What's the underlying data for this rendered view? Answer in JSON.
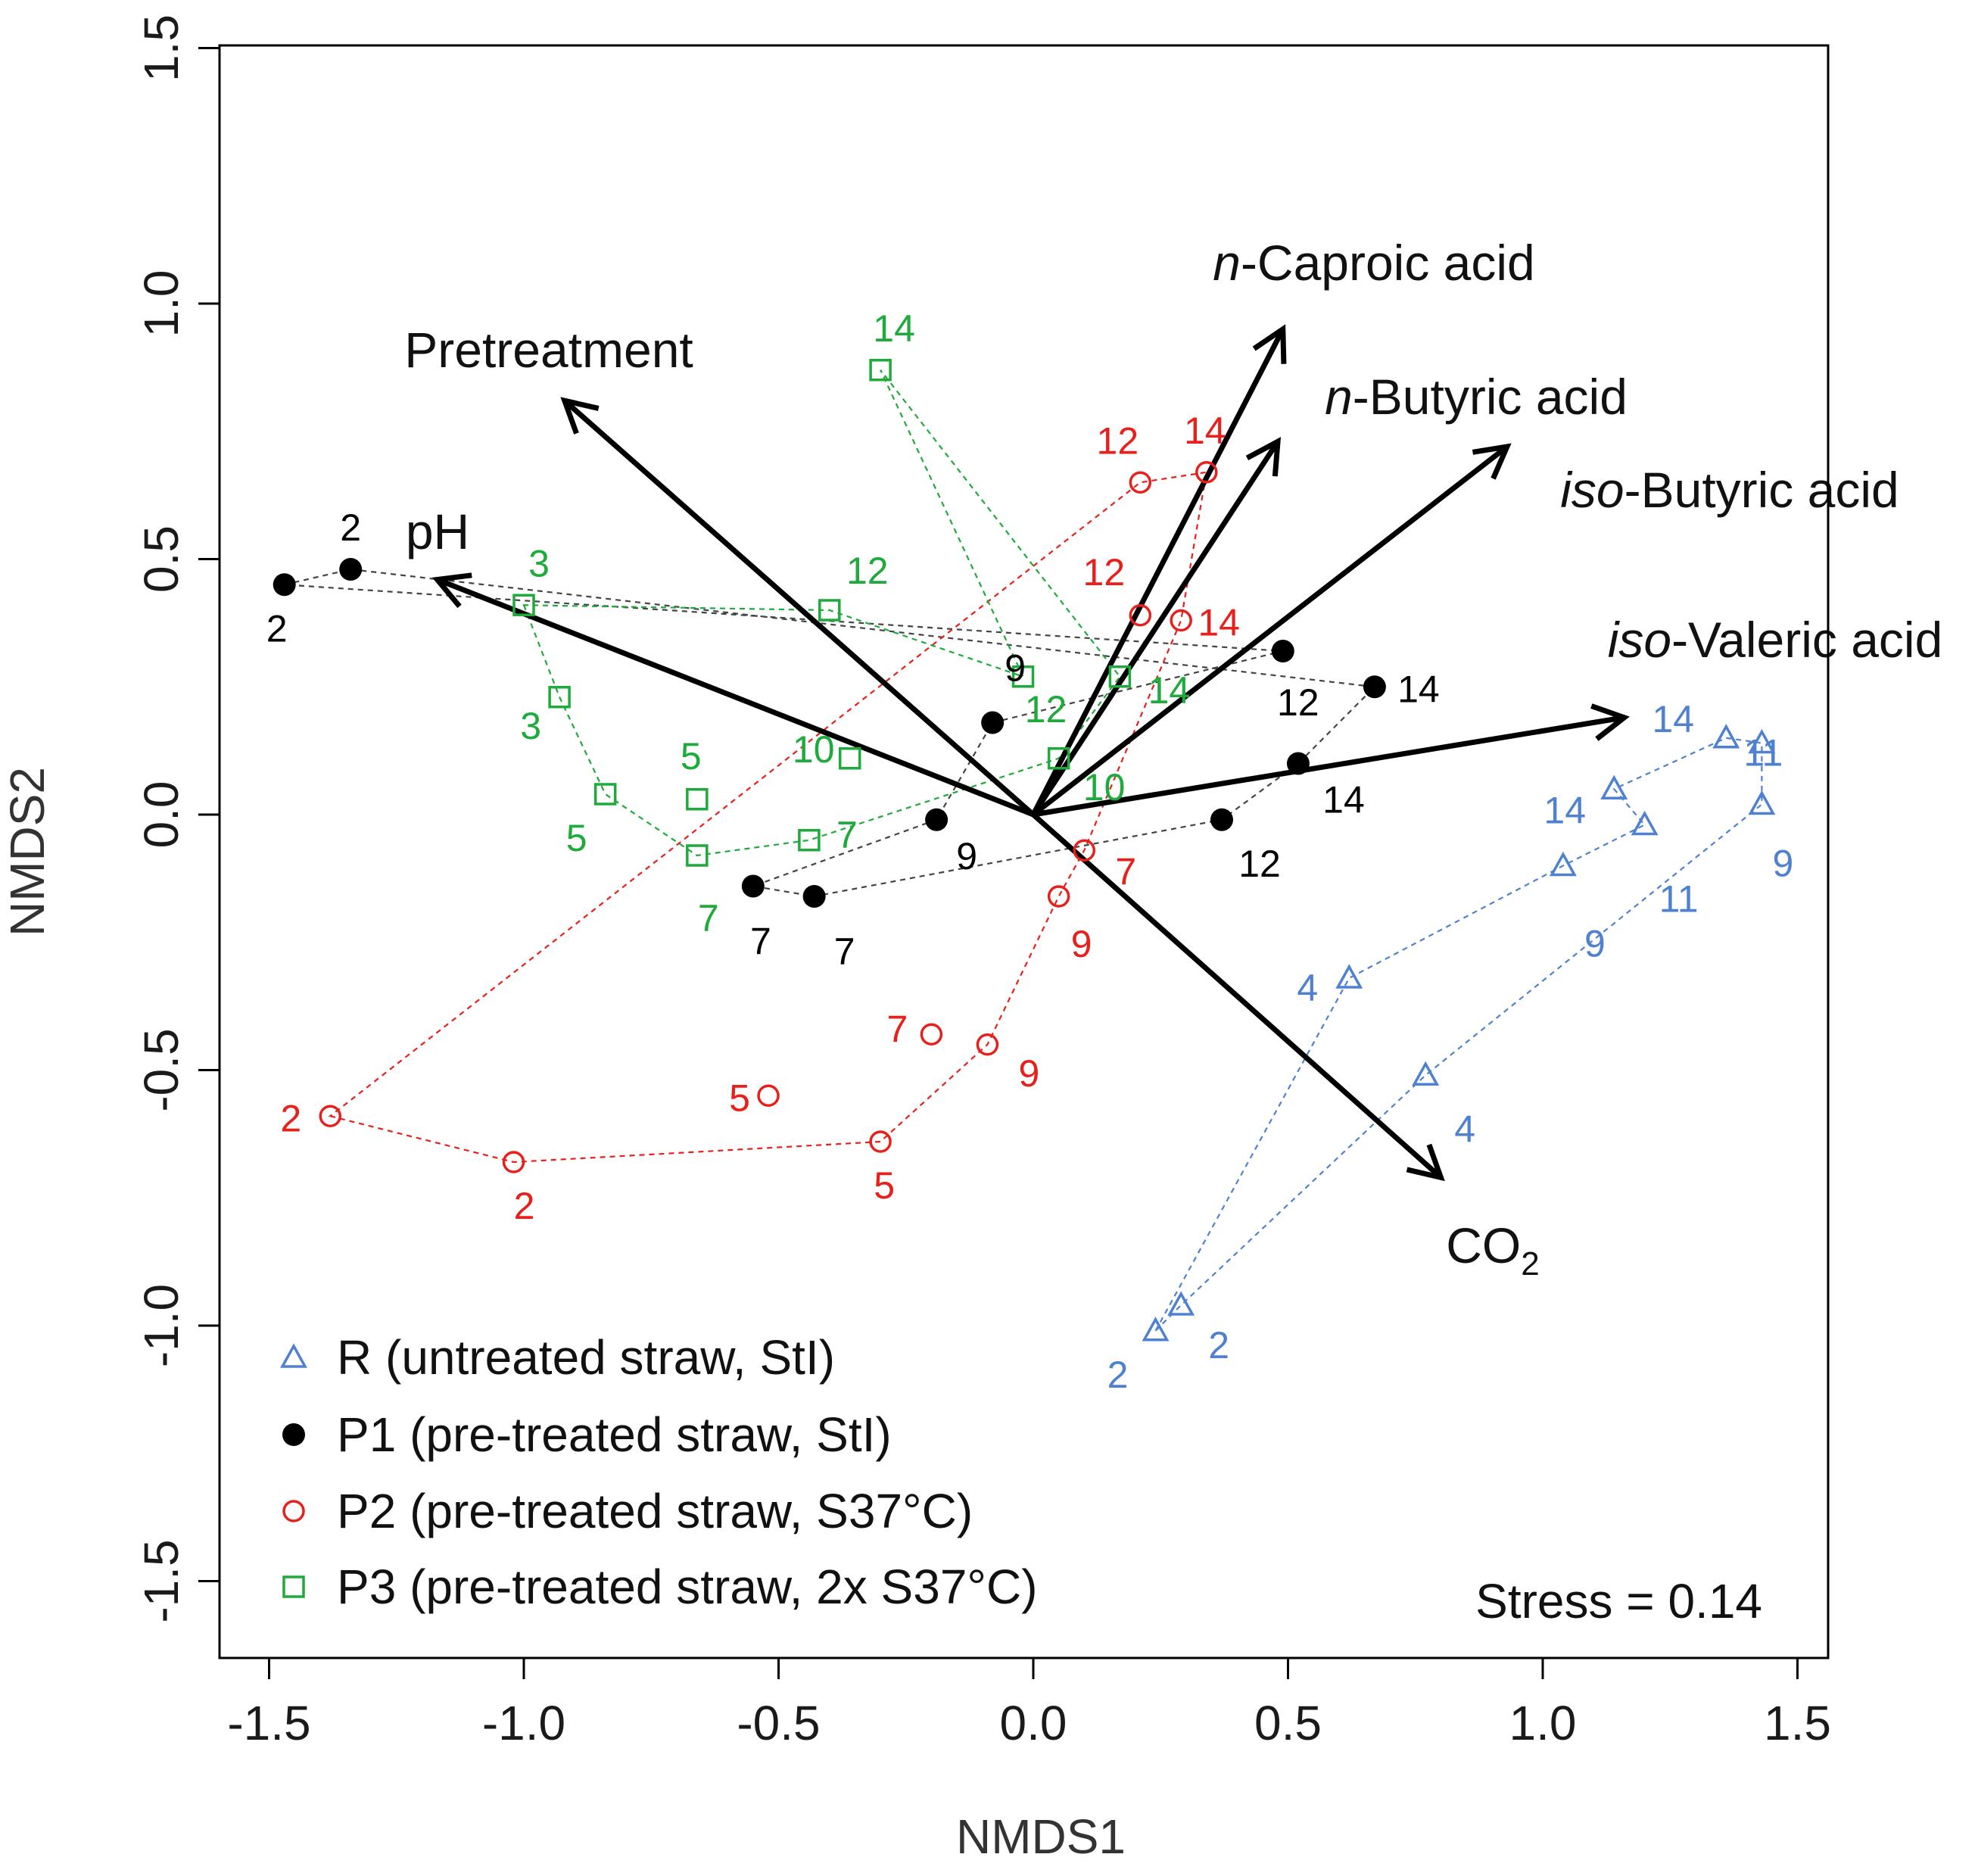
{
  "chart_data": {
    "type": "scatter",
    "title": "",
    "xlabel": "NMDS1",
    "ylabel": "NMDS2",
    "xlim": [
      -1.6,
      1.6
    ],
    "ylim": [
      -1.65,
      1.5
    ],
    "xticks": [
      -1.5,
      -1.0,
      -0.5,
      0.0,
      0.5,
      1.0,
      1.5
    ],
    "yticks": [
      -1.5,
      -1.0,
      -0.5,
      0.0,
      0.5,
      1.0,
      1.5
    ],
    "xtick_labels": [
      "-1.5",
      "-1.0",
      "-0.5",
      "0.0",
      "0.5",
      "1.0",
      "1.5"
    ],
    "ytick_labels": [
      "-1.5",
      "-1.0",
      "-0.5",
      "0.0",
      "0.5",
      "1.0",
      "1.5"
    ],
    "grid": false,
    "stress": "Stress = 0.14",
    "series": [
      {
        "name": "R (untreated straw, StI)",
        "marker": "triangle",
        "color": "#4f81d0",
        "points": [
          {
            "x": 0.24,
            "y": -1.01,
            "label": "2"
          },
          {
            "x": 0.29,
            "y": -0.96,
            "label": "2"
          },
          {
            "x": 0.62,
            "y": -0.32,
            "label": "4"
          },
          {
            "x": 0.77,
            "y": -0.51,
            "label": "4"
          },
          {
            "x": 1.04,
            "y": -0.1,
            "label": "9"
          },
          {
            "x": 1.43,
            "y": 0.02,
            "label": "9"
          },
          {
            "x": 1.2,
            "y": -0.02,
            "label": "11"
          },
          {
            "x": 1.43,
            "y": 0.14,
            "label": "11"
          },
          {
            "x": 1.14,
            "y": 0.05,
            "label": "14"
          },
          {
            "x": 1.36,
            "y": 0.15,
            "label": "14"
          }
        ]
      },
      {
        "name": "P1 (pre-treated straw, StI)",
        "marker": "filled-circle",
        "color": "#000000",
        "points": [
          {
            "x": -1.47,
            "y": 0.45,
            "label": "2"
          },
          {
            "x": -1.34,
            "y": 0.48,
            "label": "2"
          },
          {
            "x": -0.55,
            "y": -0.14,
            "label": "7"
          },
          {
            "x": -0.43,
            "y": -0.16,
            "label": "7"
          },
          {
            "x": -0.19,
            "y": -0.01,
            "label": "9"
          },
          {
            "x": -0.08,
            "y": 0.18,
            "label": "9"
          },
          {
            "x": 0.37,
            "y": -0.01,
            "label": "12"
          },
          {
            "x": 0.49,
            "y": 0.32,
            "label": "12"
          },
          {
            "x": 0.52,
            "y": 0.1,
            "label": "14"
          },
          {
            "x": 0.67,
            "y": 0.25,
            "label": "14"
          }
        ]
      },
      {
        "name": "P2 (pre-treated straw, S37°C)",
        "marker": "open-circle",
        "color": "#e8201b",
        "points": [
          {
            "x": -1.38,
            "y": -0.59,
            "label": "2"
          },
          {
            "x": -1.02,
            "y": -0.68,
            "label": "2"
          },
          {
            "x": -0.52,
            "y": -0.55,
            "label": "5"
          },
          {
            "x": -0.3,
            "y": -0.64,
            "label": "5"
          },
          {
            "x": -0.2,
            "y": -0.43,
            "label": "7"
          },
          {
            "x": 0.1,
            "y": -0.07,
            "label": "7"
          },
          {
            "x": -0.09,
            "y": -0.45,
            "label": "9"
          },
          {
            "x": 0.05,
            "y": -0.16,
            "label": "9"
          },
          {
            "x": 0.21,
            "y": 0.65,
            "label": "12"
          },
          {
            "x": 0.21,
            "y": 0.39,
            "label": "12"
          },
          {
            "x": 0.34,
            "y": 0.67,
            "label": "14"
          },
          {
            "x": 0.29,
            "y": 0.38,
            "label": "14"
          }
        ]
      },
      {
        "name": "P3 (pre-treated straw, 2x S37°C)",
        "marker": "open-square",
        "color": "#1faa3c",
        "points": [
          {
            "x": -1.0,
            "y": 0.41,
            "label": "3"
          },
          {
            "x": -0.93,
            "y": 0.23,
            "label": "3"
          },
          {
            "x": -0.84,
            "y": 0.04,
            "label": "5"
          },
          {
            "x": -0.66,
            "y": 0.03,
            "label": "5"
          },
          {
            "x": -0.66,
            "y": -0.08,
            "label": "7"
          },
          {
            "x": -0.44,
            "y": -0.05,
            "label": "7"
          },
          {
            "x": -0.36,
            "y": 0.11,
            "label": "10"
          },
          {
            "x": 0.05,
            "y": 0.11,
            "label": "10"
          },
          {
            "x": -0.4,
            "y": 0.4,
            "label": "12"
          },
          {
            "x": -0.02,
            "y": 0.27,
            "label": "12"
          },
          {
            "x": -0.3,
            "y": 0.87,
            "label": "14"
          },
          {
            "x": 0.17,
            "y": 0.27,
            "label": "14"
          }
        ]
      }
    ],
    "vectors": [
      {
        "name": "Pretreatment",
        "x": -0.92,
        "y": 0.81
      },
      {
        "name": "pH",
        "x": -1.17,
        "y": 0.46
      },
      {
        "name": "n-Caproic acid",
        "x": 0.49,
        "y": 0.95,
        "italic_prefix": "n",
        "rest": "-Caproic acid"
      },
      {
        "name": "n-Butyric acid",
        "x": 0.48,
        "y": 0.73,
        "italic_prefix": "n",
        "rest": "-Butyric acid"
      },
      {
        "name": "iso-Butyric acid",
        "x": 0.93,
        "y": 0.72,
        "italic_prefix": "iso",
        "rest": "-Butyric acid"
      },
      {
        "name": "iso-Valeric acid",
        "x": 1.16,
        "y": 0.19,
        "italic_prefix": "iso",
        "rest": "-Valeric acid"
      },
      {
        "name": "CO2",
        "x": 0.8,
        "y": -0.71,
        "base": "CO",
        "subscript": "2"
      }
    ]
  }
}
